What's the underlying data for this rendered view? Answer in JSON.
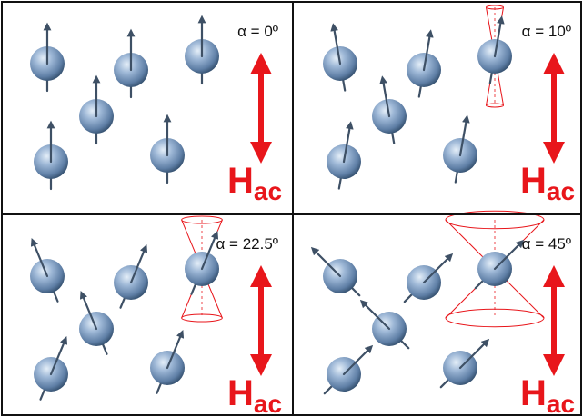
{
  "panels": [
    {
      "alpha_label": "α = 0º",
      "tilt_deg": 0,
      "field_label_main": "H",
      "field_label_sub": "ac"
    },
    {
      "alpha_label": "α = 10º",
      "tilt_deg": 10,
      "field_label_main": "H",
      "field_label_sub": "ac"
    },
    {
      "alpha_label": "α = 22.5º",
      "tilt_deg": 22.5,
      "field_label_main": "H",
      "field_label_sub": "ac"
    },
    {
      "alpha_label": "α = 45º",
      "tilt_deg": 45,
      "field_label_main": "H",
      "field_label_sub": "ac"
    }
  ],
  "colors": {
    "field_arrow": "#e8161b",
    "field_text": "#e8161b",
    "cone": "#e8161b",
    "spin_arrow": "#3e5065",
    "sphere_light": "#d7e4f2",
    "sphere_mid": "#7f9dc0",
    "sphere_dark": "#2d4865",
    "border": "#111111"
  }
}
